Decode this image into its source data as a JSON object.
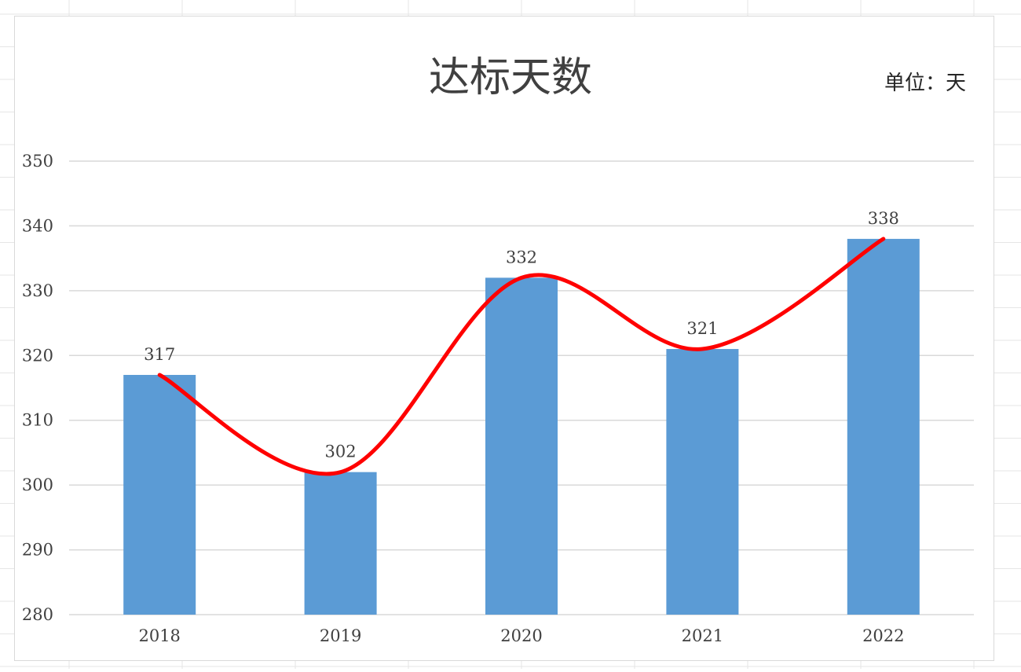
{
  "chart_data": {
    "type": "bar",
    "title": "达标天数",
    "unit_label": "单位：天",
    "categories": [
      "2018",
      "2019",
      "2020",
      "2021",
      "2022"
    ],
    "series": [
      {
        "values": [
          317,
          302,
          332,
          321,
          338
        ],
        "color": "#5b9bd5"
      }
    ],
    "overlay_line": {
      "style": "smooth",
      "color": "#ff0000"
    },
    "ylim": [
      280,
      350
    ],
    "yticks": [
      280,
      290,
      300,
      310,
      320,
      330,
      340,
      350
    ],
    "grid": true,
    "data_labels": true
  },
  "colors": {
    "bar": "#5b9bd5",
    "trend_line": "#ff0000",
    "gridline": "#d9d9d9",
    "sheet_grid": "#e6e6e6"
  }
}
